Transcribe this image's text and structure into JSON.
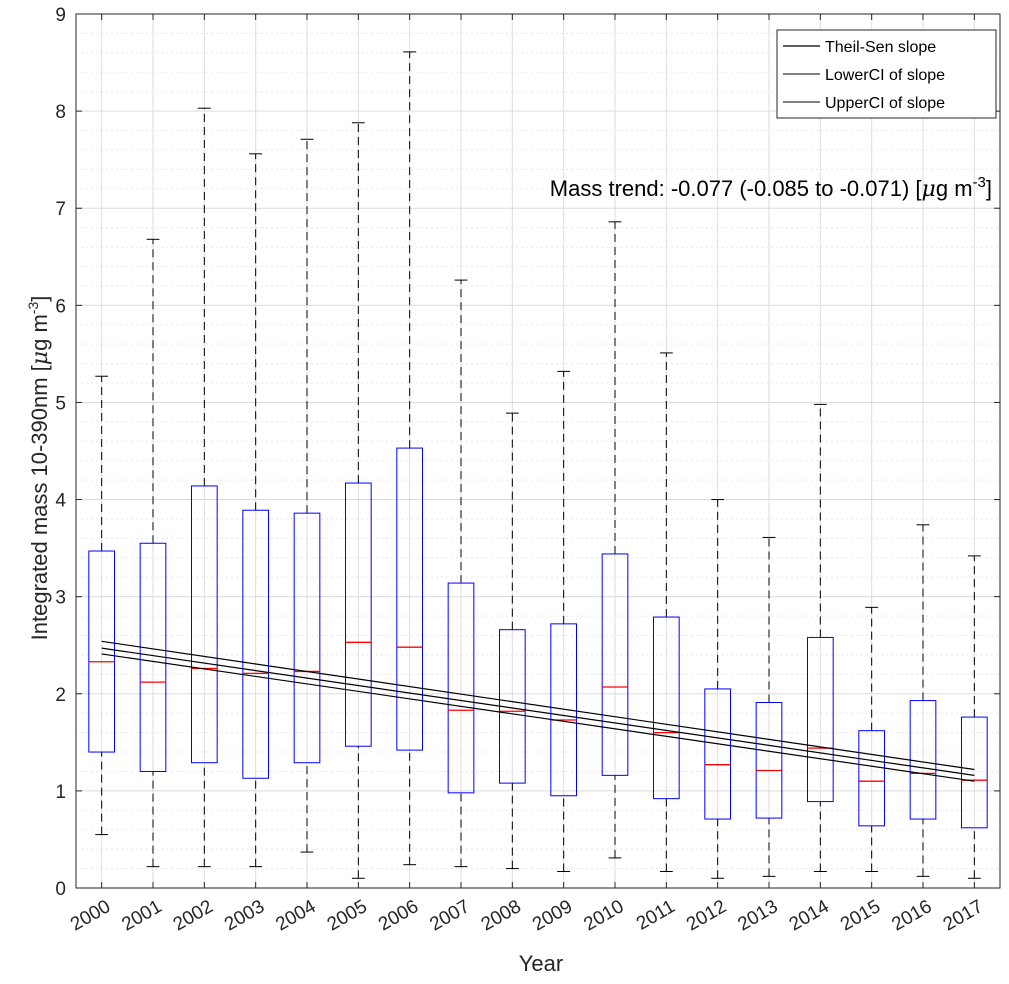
{
  "chart_data": {
    "type": "box",
    "xlabel": "Year",
    "ylabel_main": "Integrated mass 10-390nm [",
    "ylabel_mu": "μ",
    "ylabel_unit": "g m",
    "ylabel_exp": "-3",
    "ylabel_close": "]",
    "ylim": [
      0,
      9
    ],
    "yticks": [
      0,
      1,
      2,
      3,
      4,
      5,
      6,
      7,
      8,
      9
    ],
    "grid": true,
    "minor_grid": true,
    "categories": [
      "2000",
      "2001",
      "2002",
      "2003",
      "2004",
      "2005",
      "2006",
      "2007",
      "2008",
      "2009",
      "2010",
      "2011",
      "2012",
      "2013",
      "2014",
      "2015",
      "2016",
      "2017"
    ],
    "boxes": [
      {
        "whisker_low": 0.55,
        "q1": 1.4,
        "median": 2.33,
        "q3": 3.47,
        "whisker_high": 5.27
      },
      {
        "whisker_low": 0.22,
        "q1": 1.2,
        "median": 2.12,
        "q3": 3.55,
        "whisker_high": 6.68
      },
      {
        "whisker_low": 0.22,
        "q1": 1.29,
        "median": 2.26,
        "q3": 4.14,
        "whisker_high": 8.03
      },
      {
        "whisker_low": 0.22,
        "q1": 1.13,
        "median": 2.21,
        "q3": 3.89,
        "whisker_high": 7.56
      },
      {
        "whisker_low": 0.37,
        "q1": 1.29,
        "median": 2.23,
        "q3": 3.86,
        "whisker_high": 7.71
      },
      {
        "whisker_low": 0.1,
        "q1": 1.46,
        "median": 2.53,
        "q3": 4.17,
        "whisker_high": 7.88
      },
      {
        "whisker_low": 0.24,
        "q1": 1.42,
        "median": 2.48,
        "q3": 4.53,
        "whisker_high": 8.61
      },
      {
        "whisker_low": 0.22,
        "q1": 0.98,
        "median": 1.83,
        "q3": 3.14,
        "whisker_high": 6.26
      },
      {
        "whisker_low": 0.2,
        "q1": 1.08,
        "median": 1.82,
        "q3": 2.66,
        "whisker_high": 4.89
      },
      {
        "whisker_low": 0.17,
        "q1": 0.95,
        "median": 1.73,
        "q3": 2.72,
        "whisker_high": 5.32
      },
      {
        "whisker_low": 0.31,
        "q1": 1.16,
        "median": 2.07,
        "q3": 3.44,
        "whisker_high": 6.86
      },
      {
        "whisker_low": 0.17,
        "q1": 0.92,
        "median": 1.6,
        "q3": 2.79,
        "whisker_high": 5.51
      },
      {
        "whisker_low": 0.1,
        "q1": 0.71,
        "median": 1.27,
        "q3": 2.05,
        "whisker_high": 4.0
      },
      {
        "whisker_low": 0.12,
        "q1": 0.72,
        "median": 1.21,
        "q3": 1.91,
        "whisker_high": 3.61
      },
      {
        "whisker_low": 0.17,
        "q1": 0.89,
        "median": 1.44,
        "q3": 2.58,
        "whisker_high": 4.98
      },
      {
        "whisker_low": 0.17,
        "q1": 0.64,
        "median": 1.1,
        "q3": 1.62,
        "whisker_high": 2.89
      },
      {
        "whisker_low": 0.12,
        "q1": 0.71,
        "median": 1.18,
        "q3": 1.93,
        "whisker_high": 3.74
      },
      {
        "whisker_low": 0.1,
        "q1": 0.62,
        "median": 1.11,
        "q3": 1.76,
        "whisker_high": 3.42
      }
    ],
    "trend_lines": [
      {
        "name": "Theil-Sen slope",
        "y_start": 2.47,
        "y_end": 1.16
      },
      {
        "name": "LowerCI of slope",
        "y_start": 2.41,
        "y_end": 1.1
      },
      {
        "name": "UpperCI of slope",
        "y_start": 2.54,
        "y_end": 1.22
      }
    ],
    "annotation": {
      "prefix": "Mass trend: -0.077 (-0.085 to -0.071) [",
      "mu": "μ",
      "unit": "g m",
      "exp": "-3",
      "close": "]"
    },
    "colors": {
      "box": "#0000ff",
      "median": "#ff0000",
      "whisker": "#000000",
      "trend": "#000000",
      "grid": "#dcdcdc",
      "minor_grid": "#e8e8e8"
    }
  }
}
